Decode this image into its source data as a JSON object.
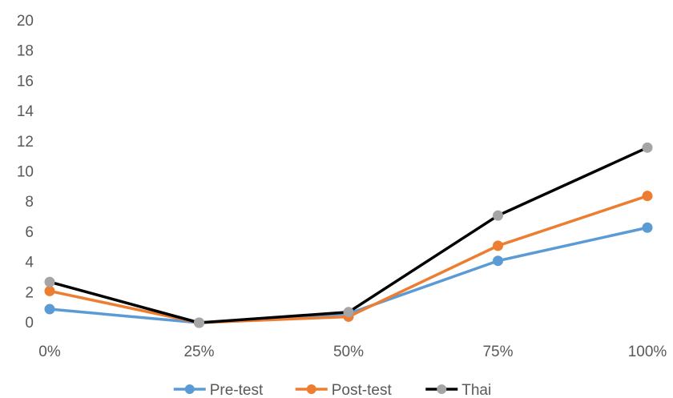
{
  "chart_data": {
    "type": "line",
    "categories": [
      "0%",
      "25%",
      "50%",
      "75%",
      "100%"
    ],
    "ylim": [
      0,
      20
    ],
    "yticks": [
      "0",
      "2",
      "4",
      "6",
      "8",
      "10",
      "12",
      "14",
      "16",
      "18",
      "20"
    ],
    "grid": false,
    "legend_position": "bottom",
    "series": [
      {
        "name": "Pre-test",
        "color": "#5B9BD5",
        "values": [
          0.9,
          0.0,
          0.6,
          4.1,
          6.3
        ]
      },
      {
        "name": "Post-test",
        "color": "#ED7D31",
        "values": [
          2.1,
          0.0,
          0.4,
          5.1,
          8.4
        ]
      },
      {
        "name": "Thai",
        "line_color": "#000000",
        "marker_color": "#A5A5A5",
        "values": [
          2.7,
          0.0,
          0.7,
          7.1,
          11.6
        ]
      }
    ]
  }
}
